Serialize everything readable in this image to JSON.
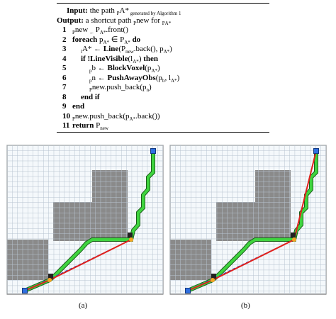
{
  "algorithm": {
    "lines": [
      {
        "parts": [
          "Input:",
          " the path ",
          "P",
          "A*",
          " generated by Algorithm 1"
        ]
      },
      {
        "parts": [
          "Output:",
          " a shortcut path ",
          "P",
          "new",
          " for ",
          "P",
          "A*"
        ]
      },
      {
        "num": "1",
        "parts": [
          "P",
          "new",
          " ← ",
          "P",
          "A*",
          ".front()"
        ]
      },
      {
        "num": "2",
        "parts": [
          "foreach",
          " p",
          "A*",
          " ∈ P",
          "A*",
          " do"
        ]
      },
      {
        "num": "3",
        "parts": [
          "l",
          "A*",
          " ← ",
          "Line",
          "(P",
          "new",
          ".back(), p",
          "A*",
          ")"
        ]
      },
      {
        "num": "4",
        "parts": [
          "if !LineVisible",
          "(l",
          "A*",
          ") ",
          "then"
        ]
      },
      {
        "num": "5",
        "parts": [
          "p",
          "b",
          " ← ",
          "BlockVoxel",
          "(p",
          "A*",
          ")"
        ]
      },
      {
        "num": "6",
        "parts": [
          "p",
          "n",
          " ← ",
          "PushAwayObs",
          "(p",
          "b",
          ", l",
          "A*",
          ")"
        ]
      },
      {
        "num": "7",
        "parts": [
          "P",
          "new",
          ".push_back(p",
          "n",
          ")"
        ]
      },
      {
        "num": "8",
        "parts": [
          "end if"
        ]
      },
      {
        "num": "9",
        "parts": [
          "end"
        ]
      },
      {
        "num": "10",
        "parts": [
          "P",
          "new",
          ".push_back(p",
          "A*",
          ".back())"
        ]
      },
      {
        "num": "11",
        "parts": [
          "return",
          " P",
          "new"
        ]
      }
    ]
  },
  "figures": [
    {
      "label": "(a)"
    },
    {
      "label": "(b)"
    }
  ]
}
